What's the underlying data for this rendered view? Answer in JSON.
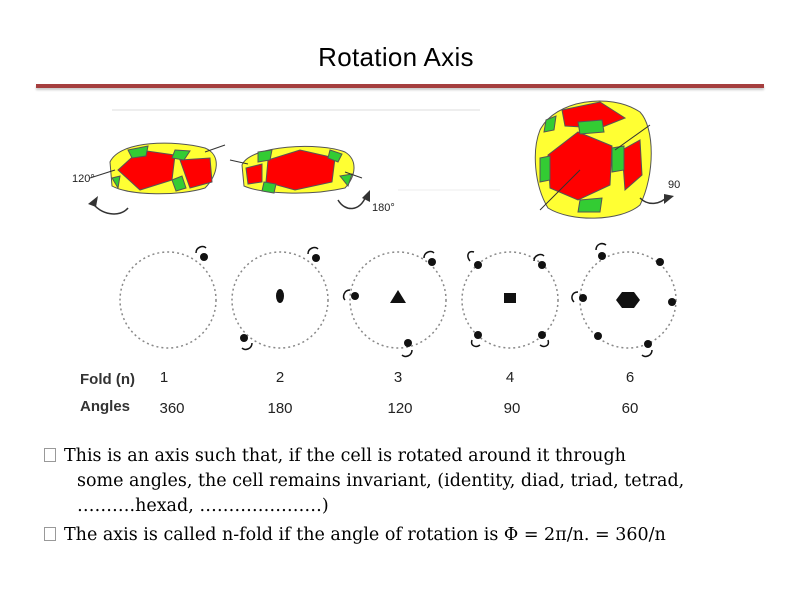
{
  "title": "Rotation Axis",
  "angle_labels": {
    "a120": "120°",
    "a180": "180°",
    "a90": "90"
  },
  "table": {
    "fold_label": "Fold (n)",
    "angles_label": "Angles",
    "folds": [
      "1",
      "2",
      "3",
      "4",
      "6"
    ],
    "angles": [
      "360",
      "180",
      "120",
      "90",
      "60"
    ]
  },
  "bullets": {
    "b1_line1": "This is an axis such that, if the cell is rotated around it through",
    "b1_line2": "some angles, the cell remains invariant, (identity, diad, triad, tetrad,",
    "b1_line3": "……….hexad, …………………)",
    "b2_line1": "The axis is called n-fold if the angle of rotation is  Φ  = 2π/n. = 360/n"
  },
  "colors": {
    "title_rule": "#a53e3e",
    "face_red": "#ff0000",
    "face_yellow": "#ffff33",
    "face_green": "#33cc33"
  },
  "icons": [
    "dot-symbol",
    "ellipse-symbol",
    "triangle-symbol",
    "square-symbol",
    "hexagon-symbol"
  ]
}
